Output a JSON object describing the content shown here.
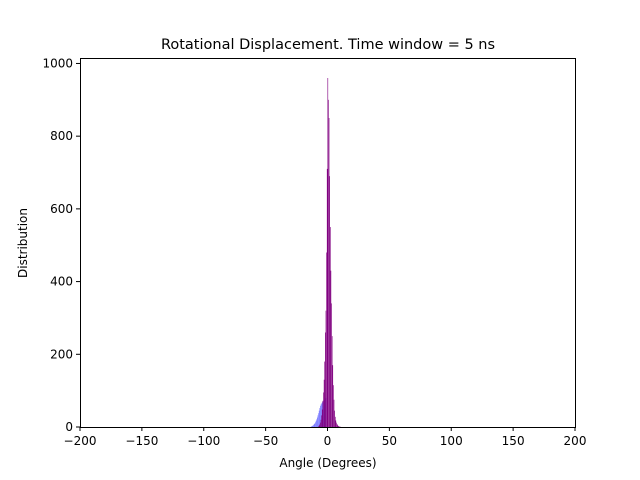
{
  "chart_data": {
    "type": "bar",
    "title": "Rotational Displacement. Time window = 5 ns",
    "xlabel": "Angle (Degrees)",
    "ylabel": "Distribution",
    "xlim": [
      -200,
      200
    ],
    "ylim": [
      0,
      1015
    ],
    "xticks": [
      -200,
      -150,
      -100,
      -50,
      0,
      50,
      100,
      150,
      200
    ],
    "xtick_labels": [
      "−200",
      "−150",
      "−100",
      "−50",
      "0",
      "50",
      "100",
      "150",
      "200"
    ],
    "yticks": [
      0,
      200,
      400,
      600,
      800,
      1000
    ],
    "ytick_labels": [
      "0",
      "200",
      "400",
      "600",
      "800",
      "1000"
    ],
    "bin_width": 0.5,
    "grid": false,
    "legend": "none",
    "series": [
      {
        "color": "#0000ff",
        "alpha": 0.5,
        "bins": [
          [
            -13.5,
            1
          ],
          [
            -13.0,
            2
          ],
          [
            -12.5,
            3
          ],
          [
            -12.0,
            4
          ],
          [
            -11.5,
            6
          ],
          [
            -11.0,
            8
          ],
          [
            -10.5,
            10
          ],
          [
            -10.0,
            13
          ],
          [
            -9.5,
            17
          ],
          [
            -9.0,
            21
          ],
          [
            -8.5,
            26
          ],
          [
            -8.0,
            32
          ],
          [
            -7.5,
            38
          ],
          [
            -7.0,
            45
          ],
          [
            -6.5,
            52
          ],
          [
            -6.0,
            58
          ],
          [
            -5.5,
            62
          ],
          [
            -5.0,
            65
          ],
          [
            -4.5,
            68
          ],
          [
            -4.0,
            70
          ],
          [
            -3.5,
            72
          ],
          [
            -3.0,
            74
          ],
          [
            -2.5,
            76
          ],
          [
            -2.0,
            78
          ],
          [
            -1.5,
            80
          ]
        ]
      },
      {
        "color": "#800080",
        "alpha": 1.0,
        "bins": [
          [
            -7.5,
            2
          ],
          [
            -7.0,
            4
          ],
          [
            -6.5,
            7
          ],
          [
            -6.0,
            12
          ],
          [
            -5.5,
            20
          ],
          [
            -5.0,
            32
          ],
          [
            -4.5,
            48
          ],
          [
            -4.0,
            72
          ],
          [
            -3.5,
            95
          ],
          [
            -3.0,
            130
          ],
          [
            -2.5,
            180
          ],
          [
            -2.0,
            260
          ],
          [
            -1.5,
            320
          ],
          [
            -1.0,
            480
          ],
          [
            -0.5,
            710
          ],
          [
            0.0,
            960
          ],
          [
            0.5,
            900
          ],
          [
            1.0,
            850
          ],
          [
            1.5,
            690
          ],
          [
            2.0,
            550
          ],
          [
            2.5,
            430
          ],
          [
            3.0,
            340
          ],
          [
            3.5,
            250
          ],
          [
            4.0,
            170
          ],
          [
            4.5,
            115
          ],
          [
            5.0,
            75
          ],
          [
            5.5,
            45
          ],
          [
            6.0,
            28
          ],
          [
            6.5,
            18
          ],
          [
            7.0,
            12
          ],
          [
            7.5,
            8
          ],
          [
            8.0,
            5
          ],
          [
            8.5,
            3
          ],
          [
            9.0,
            2
          ],
          [
            9.5,
            1
          ],
          [
            10.0,
            1
          ]
        ]
      }
    ]
  }
}
